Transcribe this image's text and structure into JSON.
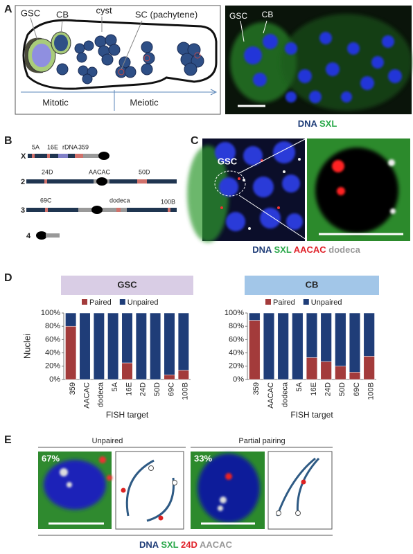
{
  "panel_a": {
    "letter": "A",
    "labels": [
      "GSC",
      "CB",
      "cyst",
      "SC (pachytene)"
    ],
    "phases": [
      "Mitotic",
      "Meiotic"
    ],
    "image_labels": [
      "GSC",
      "CB"
    ],
    "stains": [
      "DNA",
      "SXL"
    ]
  },
  "panel_b": {
    "letter": "B",
    "chromosomes": [
      {
        "name": "X",
        "loci": [
          "5A",
          "16E",
          "rDNA",
          "359"
        ]
      },
      {
        "name": "2",
        "loci": [
          "24D",
          "AACAC",
          "50D"
        ]
      },
      {
        "name": "3",
        "loci": [
          "69C",
          "dodeca",
          "100B"
        ]
      },
      {
        "name": "4",
        "loci": []
      }
    ]
  },
  "panel_c": {
    "letter": "C",
    "image_label": "GSC",
    "stains": [
      "DNA",
      "SXL",
      "AACAC",
      "dodeca"
    ]
  },
  "panel_d": {
    "letter": "D"
  },
  "chart_data": [
    {
      "type": "bar",
      "stacked": true,
      "title": "GSC",
      "ylabel": "Nuclei",
      "xlabel": "FISH target",
      "categories": [
        "359",
        "AACAC",
        "dodeca",
        "5A",
        "16E",
        "24D",
        "50D",
        "69C",
        "100B"
      ],
      "series": [
        {
          "name": "Paired",
          "color": "#a33b3b",
          "values": [
            80,
            0,
            0,
            0,
            25,
            0,
            0,
            7,
            14
          ]
        },
        {
          "name": "Unpaired",
          "color": "#1f3d78",
          "values": [
            20,
            100,
            100,
            100,
            75,
            100,
            100,
            93,
            86
          ]
        }
      ],
      "ylim": [
        0,
        100
      ],
      "yticks": [
        {
          "value": 0,
          "label": "0%"
        },
        {
          "value": 20,
          "label": "20%"
        },
        {
          "value": 40,
          "label": "40%"
        },
        {
          "value": 60,
          "label": "60%"
        },
        {
          "value": 80,
          "label": "80%"
        },
        {
          "value": 100,
          "label": "100%"
        }
      ],
      "legend": "top",
      "grid": false
    },
    {
      "type": "bar",
      "stacked": true,
      "title": "CB",
      "xlabel": "FISH target",
      "categories": [
        "359",
        "AACAC",
        "dodeca",
        "5A",
        "16E",
        "24D",
        "50D",
        "69C",
        "100B"
      ],
      "series": [
        {
          "name": "Paired",
          "color": "#a33b3b",
          "values": [
            89,
            0,
            0,
            0,
            33,
            27,
            20,
            11,
            35
          ]
        },
        {
          "name": "Unpaired",
          "color": "#1f3d78",
          "values": [
            11,
            100,
            100,
            100,
            67,
            73,
            80,
            89,
            65
          ]
        }
      ],
      "ylim": [
        0,
        100
      ],
      "yticks": [
        {
          "value": 0,
          "label": "0%"
        },
        {
          "value": 20,
          "label": "20%"
        },
        {
          "value": 40,
          "label": "40%"
        },
        {
          "value": 60,
          "label": "60%"
        },
        {
          "value": 80,
          "label": "80%"
        },
        {
          "value": 100,
          "label": "100%"
        }
      ],
      "legend": "top",
      "grid": false
    }
  ],
  "panel_e": {
    "letter": "E",
    "groups": [
      {
        "title": "Unpaired",
        "percent": "67%"
      },
      {
        "title": "Partial pairing",
        "percent": "33%"
      }
    ],
    "stains": [
      "DNA",
      "SXL",
      "24D",
      "AACAC"
    ]
  }
}
